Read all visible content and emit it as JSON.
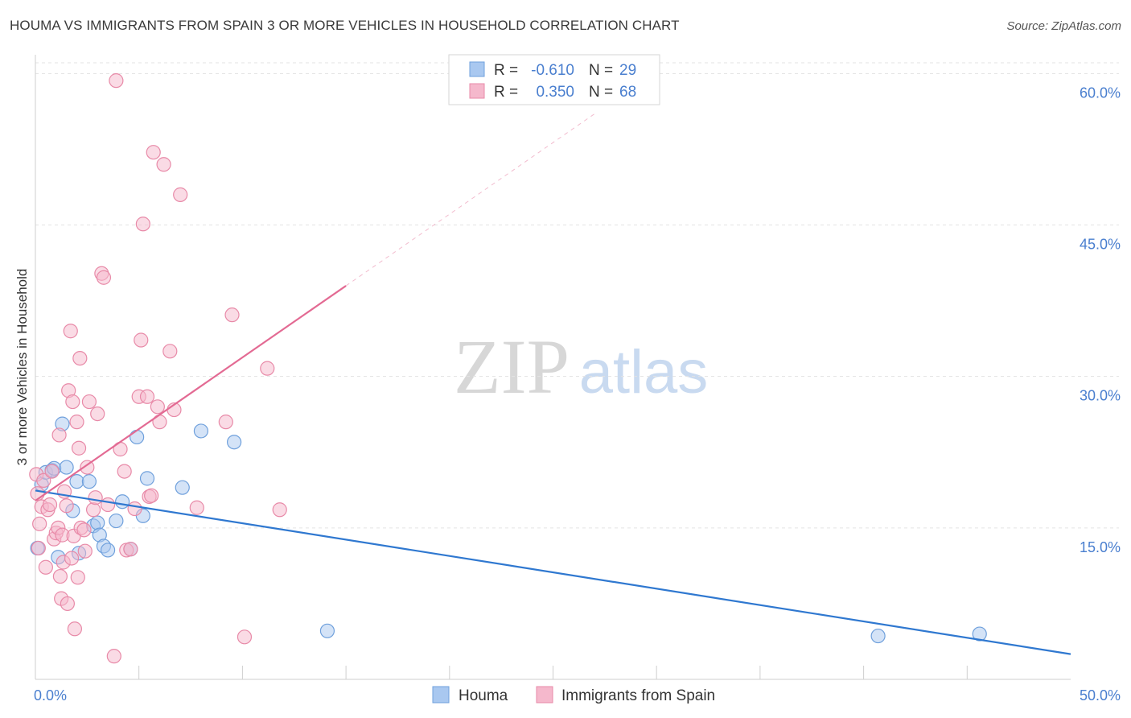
{
  "title": "HOUMA VS IMMIGRANTS FROM SPAIN 3 OR MORE VEHICLES IN HOUSEHOLD CORRELATION CHART",
  "source": "Source: ZipAtlas.com",
  "watermark": {
    "zip": "ZIP",
    "atlas": "atlas"
  },
  "colors": {
    "blue_fill": "#a9c8f0",
    "blue_stroke": "#6fa0dc",
    "blue_line": "#2f78d0",
    "pink_fill": "#f5b8cc",
    "pink_stroke": "#e88aa8",
    "pink_line": "#e36a93",
    "tick_text": "#4a7fcf",
    "grid": "#e3e3e3"
  },
  "legend_top": [
    {
      "r_label": "R =",
      "r_value": "-0.610",
      "n_label": "N =",
      "n_value": "29",
      "series": "blue"
    },
    {
      "r_label": "R =",
      "r_value": "0.350",
      "n_label": "N =",
      "n_value": "68",
      "series": "pink"
    }
  ],
  "chart_data": {
    "type": "scatter",
    "title": "HOUMA VS IMMIGRANTS FROM SPAIN 3 OR MORE VEHICLES IN HOUSEHOLD CORRELATION CHART",
    "xlabel": "",
    "ylabel": "3 or more Vehicles in Household",
    "xlim": [
      0,
      50
    ],
    "ylim": [
      0,
      62.5
    ],
    "x_tick_labels": [
      {
        "value": 0,
        "label": "0.0%"
      },
      {
        "value": 50,
        "label": "50.0%"
      }
    ],
    "x_minor_ticks": [
      5,
      10,
      15,
      20,
      25,
      30,
      35,
      40,
      45
    ],
    "y_ticks": [
      {
        "value": 15,
        "label": "15.0%"
      },
      {
        "value": 30,
        "label": "30.0%"
      },
      {
        "value": 45,
        "label": "45.0%"
      },
      {
        "value": 60,
        "label": "60.0%"
      }
    ],
    "grid": true,
    "legend": "bottom-center",
    "series": [
      {
        "name": "Houma",
        "color": "blue",
        "r": -0.61,
        "n": 29,
        "trend": {
          "x0": 0,
          "y0": 18.7,
          "x1": 50,
          "y1": 2.5,
          "solid_until": 50
        },
        "points": [
          [
            0.1,
            13.0
          ],
          [
            0.3,
            19.3
          ],
          [
            0.5,
            20.5
          ],
          [
            0.8,
            20.7
          ],
          [
            0.9,
            20.9
          ],
          [
            1.1,
            12.1
          ],
          [
            1.3,
            25.3
          ],
          [
            1.5,
            21.0
          ],
          [
            1.8,
            16.7
          ],
          [
            2.0,
            19.6
          ],
          [
            2.1,
            12.5
          ],
          [
            2.6,
            19.6
          ],
          [
            2.8,
            15.2
          ],
          [
            3.0,
            15.5
          ],
          [
            3.1,
            14.3
          ],
          [
            3.3,
            13.2
          ],
          [
            3.5,
            12.8
          ],
          [
            3.9,
            15.7
          ],
          [
            4.2,
            17.6
          ],
          [
            4.6,
            12.9
          ],
          [
            4.9,
            24.0
          ],
          [
            5.2,
            16.2
          ],
          [
            5.4,
            19.9
          ],
          [
            7.1,
            19.0
          ],
          [
            8.0,
            24.6
          ],
          [
            9.6,
            23.5
          ],
          [
            14.1,
            4.8
          ],
          [
            40.7,
            4.3
          ],
          [
            45.6,
            4.5
          ]
        ]
      },
      {
        "name": "Immigrants from Spain",
        "color": "pink",
        "r": 0.35,
        "n": 68,
        "trend": {
          "x0": 0,
          "y0": 17.7,
          "x1": 27.0,
          "y1": 56.0,
          "solid_until": 15.0
        },
        "points": [
          [
            0.05,
            20.3
          ],
          [
            0.1,
            18.4
          ],
          [
            0.15,
            13.0
          ],
          [
            0.2,
            15.4
          ],
          [
            0.3,
            17.1
          ],
          [
            0.4,
            19.7
          ],
          [
            0.5,
            11.1
          ],
          [
            0.6,
            16.8
          ],
          [
            0.7,
            17.3
          ],
          [
            0.8,
            20.6
          ],
          [
            0.9,
            13.9
          ],
          [
            1.0,
            14.5
          ],
          [
            1.1,
            15.0
          ],
          [
            1.15,
            24.2
          ],
          [
            1.2,
            10.2
          ],
          [
            1.25,
            8.0
          ],
          [
            1.3,
            14.3
          ],
          [
            1.35,
            11.6
          ],
          [
            1.4,
            18.6
          ],
          [
            1.5,
            17.2
          ],
          [
            1.55,
            7.5
          ],
          [
            1.6,
            28.6
          ],
          [
            1.7,
            34.5
          ],
          [
            1.75,
            12.0
          ],
          [
            1.8,
            27.5
          ],
          [
            1.85,
            14.2
          ],
          [
            1.9,
            5.0
          ],
          [
            2.0,
            25.5
          ],
          [
            2.05,
            10.1
          ],
          [
            2.1,
            22.9
          ],
          [
            2.15,
            31.8
          ],
          [
            2.2,
            15.0
          ],
          [
            2.4,
            12.7
          ],
          [
            2.5,
            21.0
          ],
          [
            2.6,
            27.5
          ],
          [
            2.8,
            16.8
          ],
          [
            2.9,
            18.0
          ],
          [
            3.0,
            26.3
          ],
          [
            3.2,
            40.2
          ],
          [
            3.3,
            39.8
          ],
          [
            3.5,
            17.3
          ],
          [
            3.8,
            2.3
          ],
          [
            3.9,
            59.3
          ],
          [
            4.1,
            22.8
          ],
          [
            4.3,
            20.6
          ],
          [
            4.4,
            12.8
          ],
          [
            4.6,
            12.9
          ],
          [
            4.8,
            16.9
          ],
          [
            5.0,
            28.0
          ],
          [
            5.1,
            33.6
          ],
          [
            5.2,
            45.1
          ],
          [
            5.4,
            28.0
          ],
          [
            5.5,
            18.1
          ],
          [
            5.6,
            18.2
          ],
          [
            5.7,
            52.2
          ],
          [
            5.9,
            27.0
          ],
          [
            6.0,
            25.5
          ],
          [
            6.2,
            51.0
          ],
          [
            6.5,
            32.5
          ],
          [
            6.7,
            26.7
          ],
          [
            7.0,
            48.0
          ],
          [
            7.8,
            17.0
          ],
          [
            9.2,
            25.5
          ],
          [
            9.5,
            36.1
          ],
          [
            10.1,
            4.2
          ],
          [
            11.2,
            30.8
          ],
          [
            11.8,
            16.8
          ],
          [
            2.35,
            14.8
          ]
        ]
      }
    ]
  },
  "legend_bottom": [
    {
      "label": "Houma",
      "series": "blue"
    },
    {
      "label": "Immigrants from Spain",
      "series": "pink"
    }
  ]
}
